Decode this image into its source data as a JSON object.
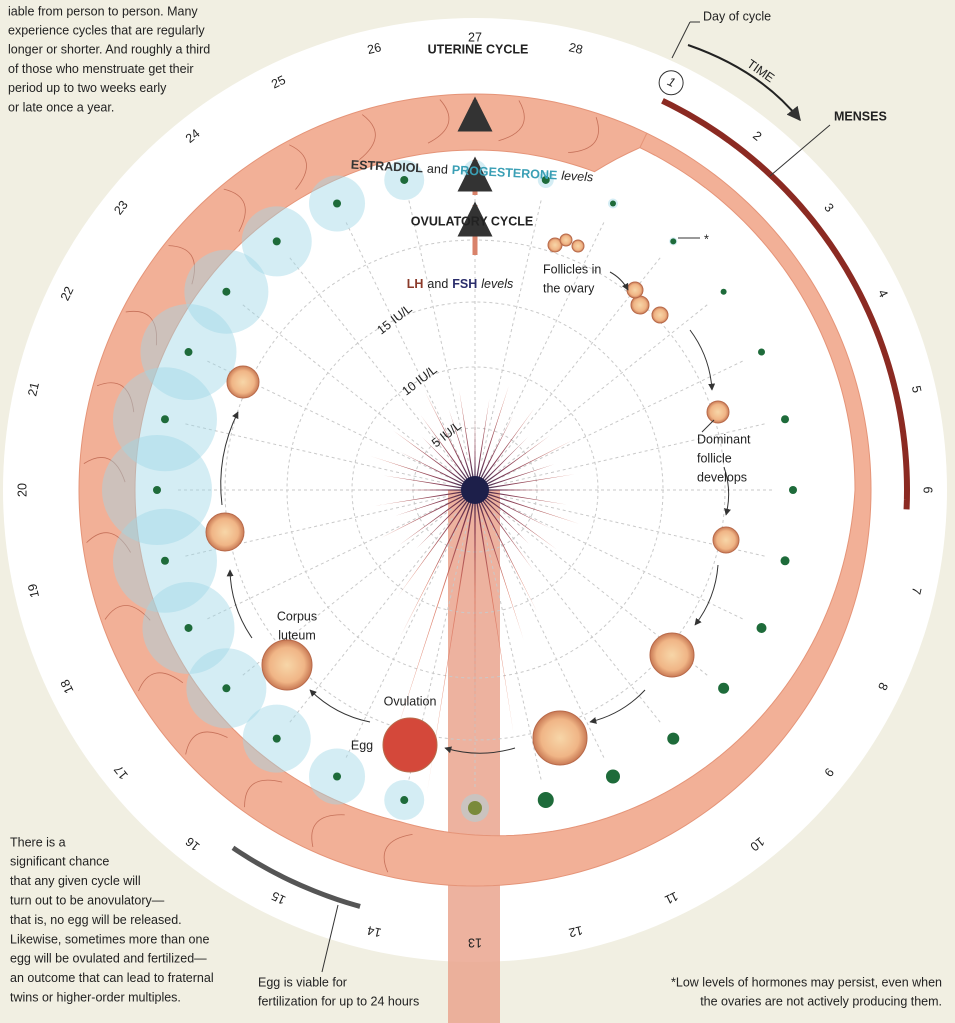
{
  "intro": [
    "iable from person to person. Many",
    "experience cycles that are regularly",
    "longer or shorter. And roughly a third",
    "of those who menstruate get their",
    "period up to two weeks early",
    "or late once a year."
  ],
  "day_label": "Day of cycle",
  "time_label": "TIME",
  "menses_label": "MENSES",
  "days": [
    "1",
    "2",
    "3",
    "4",
    "5",
    "6",
    "7",
    "8",
    "9",
    "10",
    "11",
    "12",
    "13",
    "14",
    "15",
    "16",
    "17",
    "18",
    "19",
    "20",
    "21",
    "22",
    "23",
    "24",
    "25",
    "26",
    "27",
    "28"
  ],
  "uterine_label": "UTERINE CYCLE",
  "hormone_label": {
    "estradiol": "ESTRADIOL",
    "and": "and",
    "progesterone": "PROGESTERONE",
    "levels": "levels"
  },
  "ovulatory_label": "OVULATORY CYCLE",
  "lh_label": {
    "lh": "LH",
    "and": "and",
    "fsh": "FSH",
    "levels": "levels"
  },
  "scale_labels": [
    "15 IU/L",
    "10 IU/L",
    "5 IU/L"
  ],
  "stages": {
    "follicles": [
      "Follicles in",
      "the ovary"
    ],
    "dominant": [
      "Dominant",
      "follicle",
      "develops"
    ],
    "ovulation": "Ovulation",
    "egg": "Egg",
    "corpus": [
      "Corpus",
      "luteum"
    ]
  },
  "asterisk": "*",
  "anovulatory": [
    "There is a",
    "significant chance",
    "that any given cycle will",
    "turn out to be anovulatory—",
    "that is, no egg will be released.",
    "Likewise, sometimes more than one",
    "egg will be ovulated and fertilized—",
    "an outcome that can lead to fraternal",
    "twins or higher-order multiples."
  ],
  "egg_viable": [
    "Egg is viable for",
    "fertilization for up to 24 hours"
  ],
  "footnote": [
    "*Low levels of hormones may persist, even when",
    "the ovaries are not actively producing them."
  ]
}
